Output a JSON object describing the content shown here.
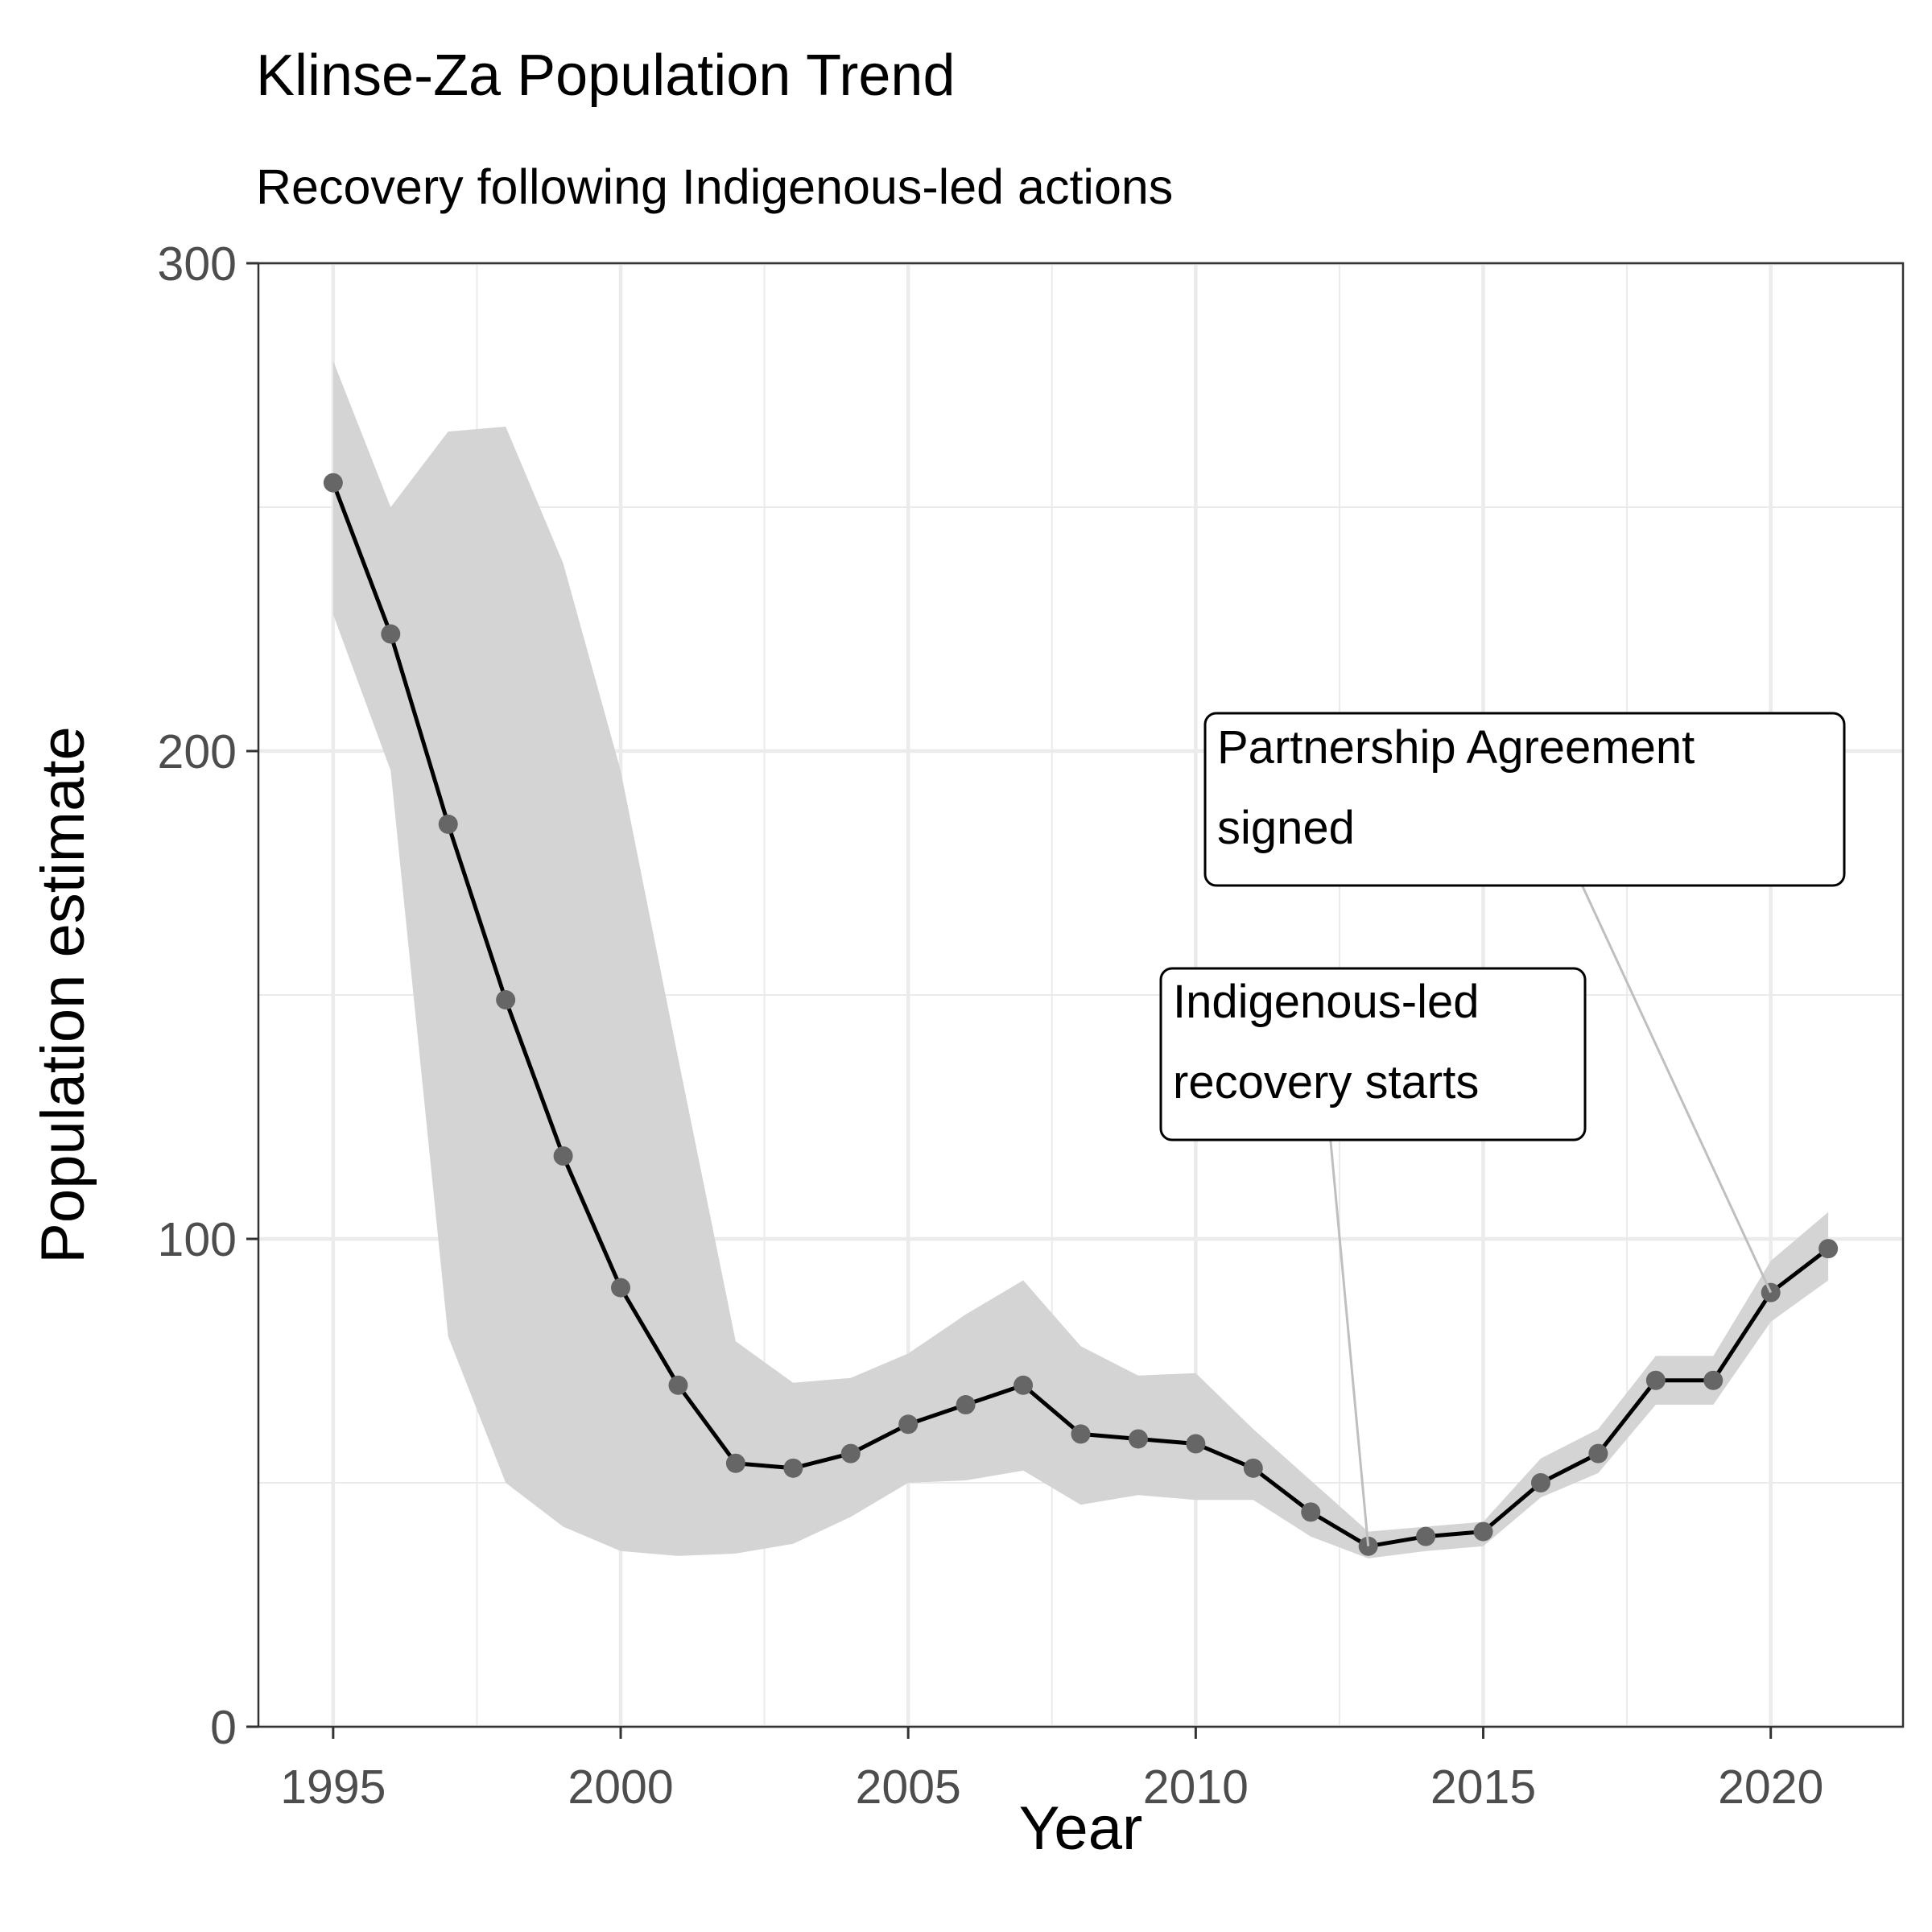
{
  "chart_data": {
    "type": "line",
    "title": "Klinse-Za Population Trend",
    "subtitle": "Recovery following Indigenous-led actions",
    "xlabel": "Year",
    "ylabel": "Population estimate",
    "xlim": [
      1993.7,
      2022.3
    ],
    "ylim": [
      0,
      300
    ],
    "x_ticks": [
      1995,
      2000,
      2005,
      2010,
      2015,
      2020
    ],
    "y_ticks": [
      0,
      100,
      200,
      300
    ],
    "grid": true,
    "legend": "none",
    "x": [
      1995,
      1996,
      1997,
      1998,
      1999,
      2000,
      2001,
      2002,
      2003,
      2004,
      2005,
      2006,
      2007,
      2008,
      2009,
      2010,
      2011,
      2012,
      2013,
      2014,
      2015,
      2016,
      2017,
      2018,
      2019,
      2020,
      2021
    ],
    "series": [
      {
        "values": [
          255,
          224,
          185,
          149,
          117,
          90,
          70,
          54,
          53,
          56,
          62,
          66,
          70,
          60,
          59,
          58,
          53,
          44,
          37,
          39,
          40,
          50,
          56,
          71,
          71,
          89,
          98
        ],
        "lower": [
          228,
          196,
          80,
          50,
          41,
          36,
          35,
          35.5,
          37.5,
          43,
          50,
          50.5,
          52.5,
          45.5,
          47.5,
          46.5,
          46.5,
          39,
          34.5,
          36,
          37,
          47,
          52,
          66,
          66,
          83,
          91.5
        ],
        "upper": [
          280,
          250,
          265.5,
          266.5,
          238.5,
          196,
          137,
          79,
          70.5,
          71.5,
          76.5,
          84.5,
          91.5,
          78,
          72,
          72.5,
          61,
          50.5,
          40,
          41,
          42,
          55,
          61,
          76,
          76,
          95.5,
          105.5
        ]
      }
    ],
    "annotations": [
      {
        "lines": [
          "Indigenous-led",
          "recovery starts"
        ],
        "x": 2013,
        "y": 37
      },
      {
        "lines": [
          "Partnership Agreement",
          "signed"
        ],
        "x": 2020,
        "y": 89
      }
    ],
    "colors": {
      "line": "#000000",
      "points": "#666666",
      "ribbon": "#d4d4d4",
      "grid": "#ebebeb",
      "panel_border": "#333333",
      "annot_connector": "#bfbfbf"
    }
  }
}
